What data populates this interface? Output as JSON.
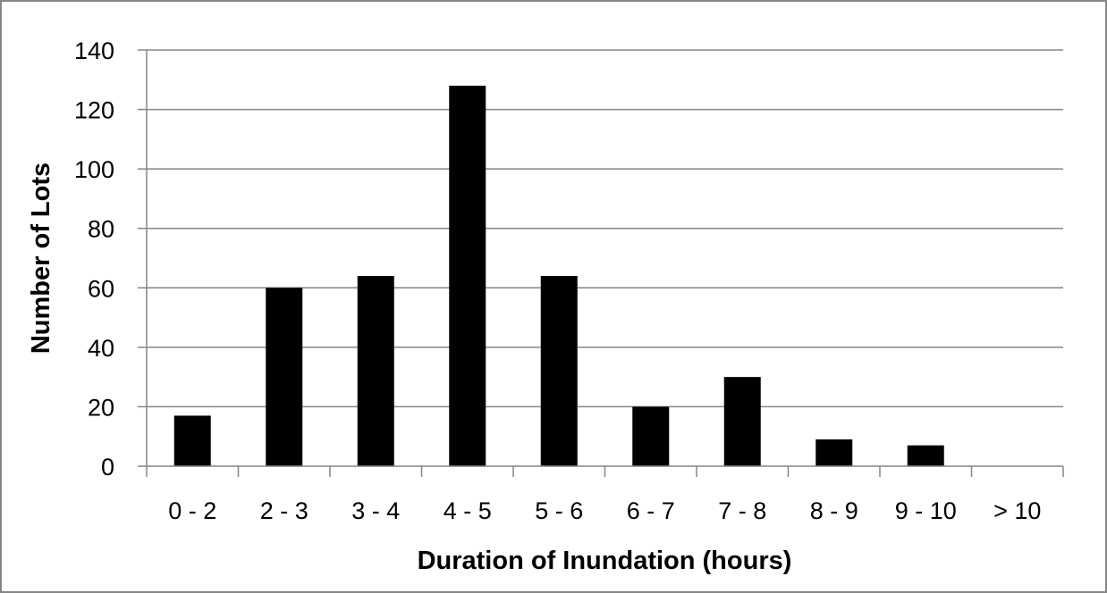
{
  "chart_data": {
    "type": "bar",
    "title": "",
    "xlabel": "Duration of Inundation (hours)",
    "ylabel": "Number of Lots",
    "categories": [
      "0 - 2",
      "2 - 3",
      "3 - 4",
      "4 - 5",
      "5 - 6",
      "6 - 7",
      "7 - 8",
      "8 - 9",
      "9 - 10",
      "> 10"
    ],
    "values": [
      17,
      60,
      64,
      128,
      64,
      20,
      30,
      9,
      7,
      0
    ],
    "ylim": [
      0,
      140
    ],
    "yticks": [
      0,
      20,
      40,
      60,
      80,
      100,
      120,
      140
    ],
    "grid": true,
    "legend": "none",
    "colors": {
      "bar": "#000000",
      "grid": "#868686",
      "frame": "#868686"
    }
  }
}
